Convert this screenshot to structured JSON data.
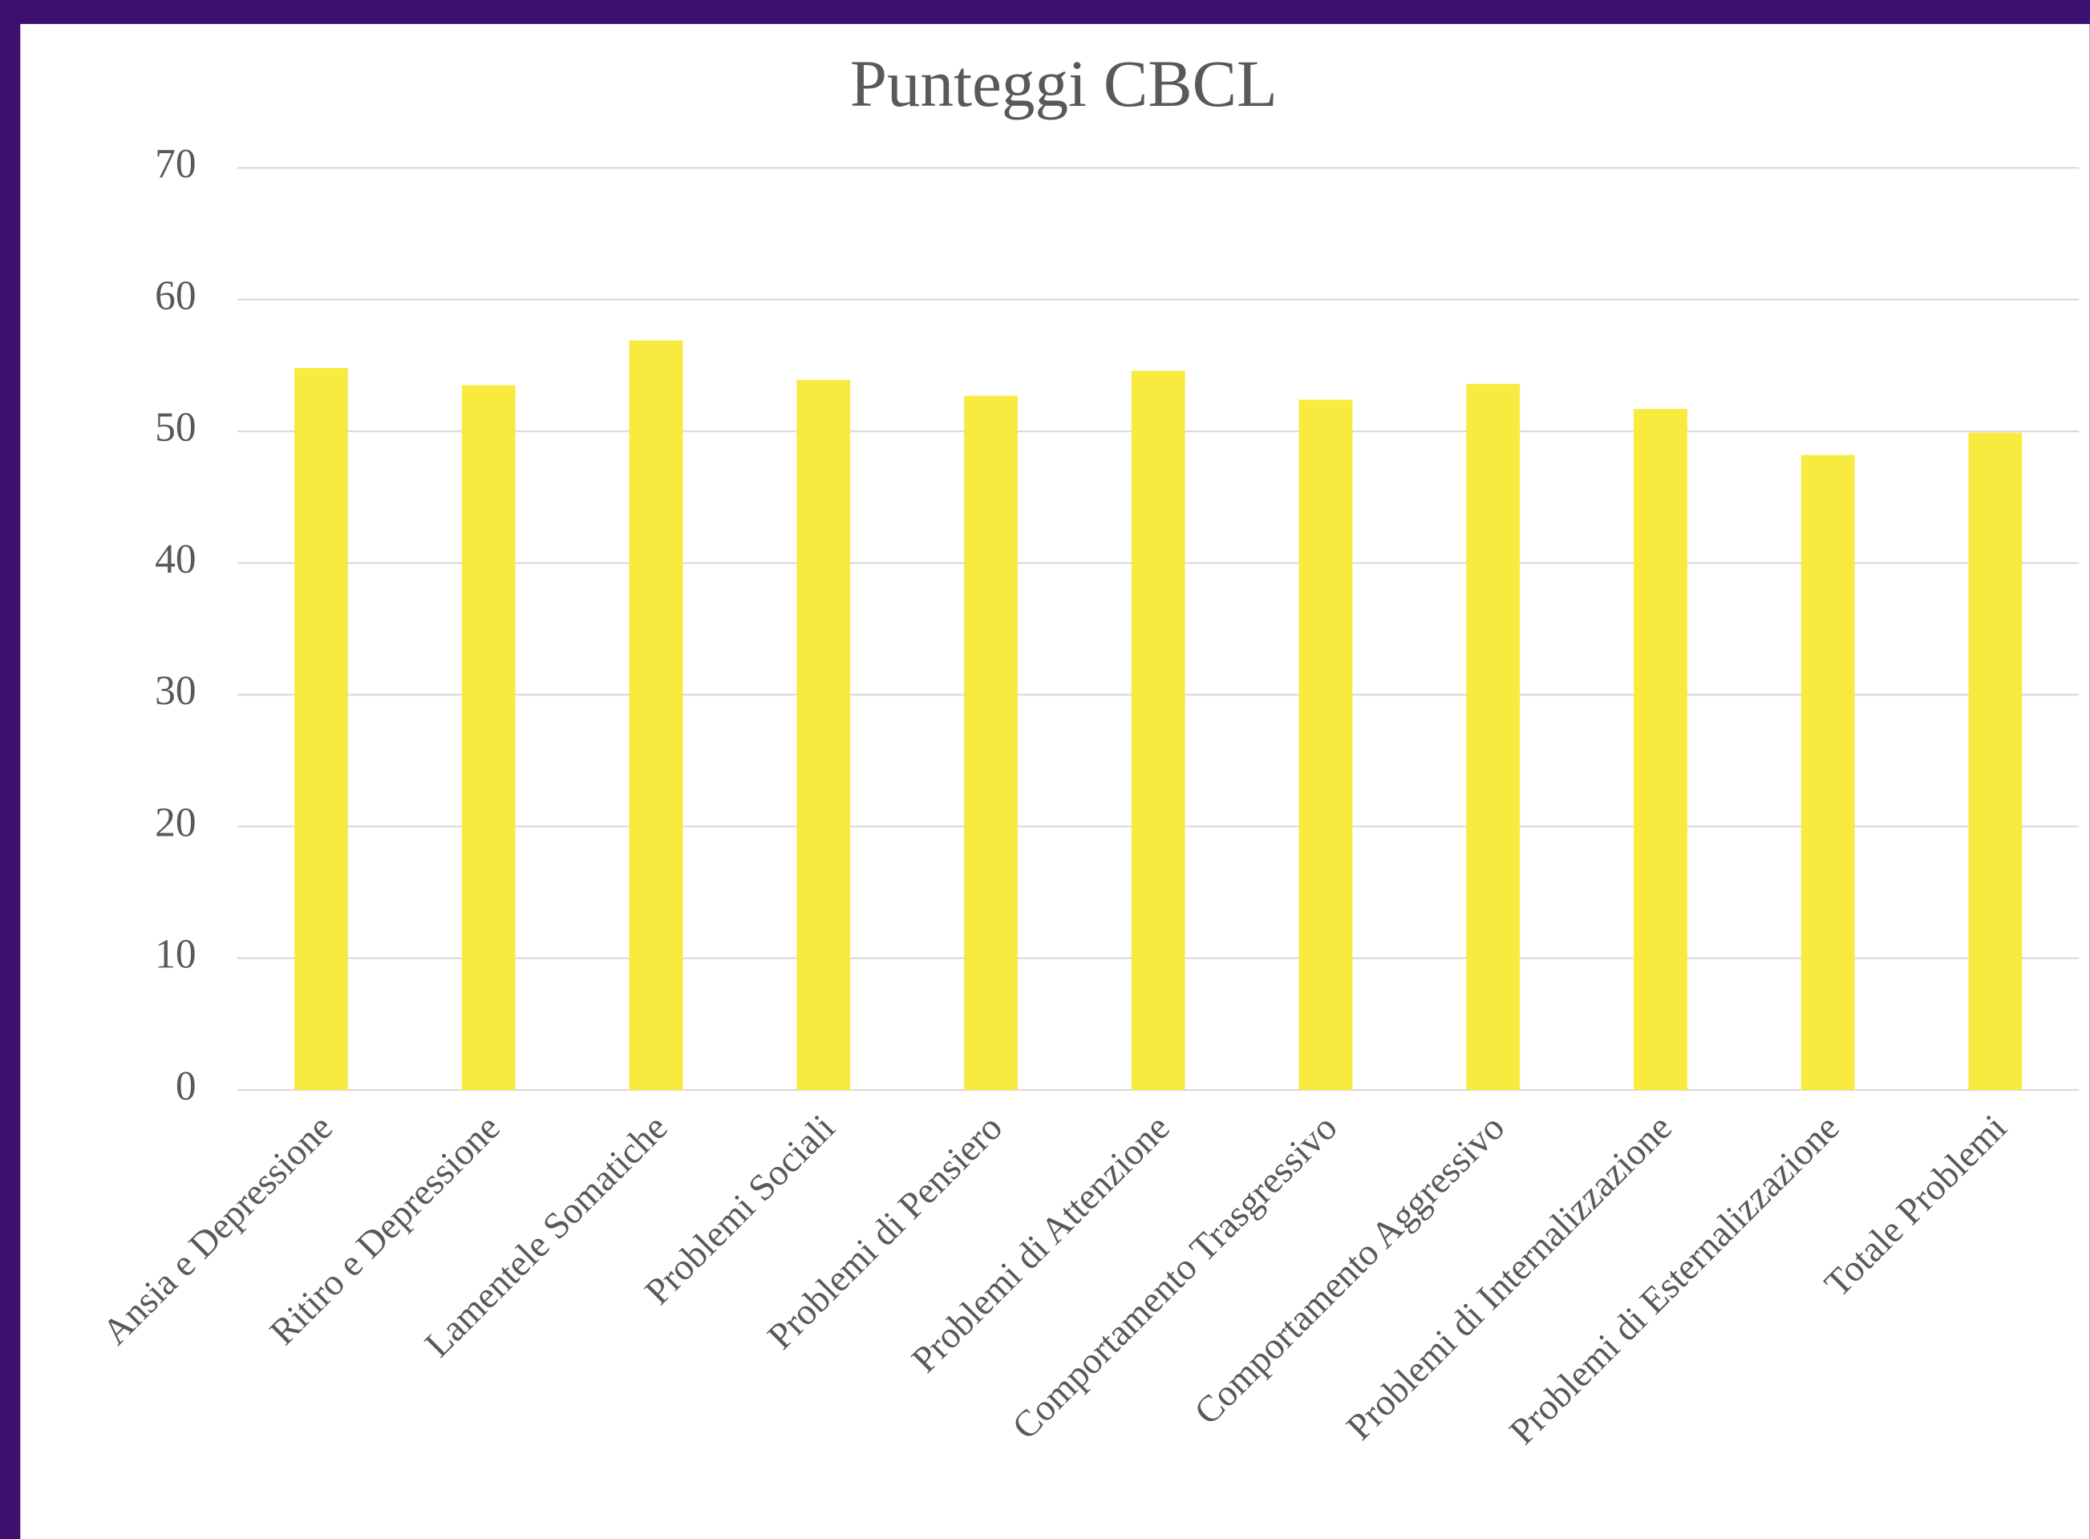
{
  "chart_data": {
    "type": "bar",
    "title": "Punteggi CBCL",
    "categories": [
      "Ansia e Depressione",
      "Ritiro e Depressione",
      "Lamentele Somatiche",
      "Problemi Sociali",
      "Problemi di Pensiero",
      "Problemi di Attenzione",
      "Comportamento Trasgressivo",
      "Comportamento Aggressivo",
      "Problemi di Internalizzazione",
      "Problemi di Esternalizzazione",
      "Totale Problemi"
    ],
    "values": [
      54.8,
      53.5,
      56.9,
      53.9,
      52.7,
      54.6,
      52.4,
      53.6,
      51.7,
      48.2,
      49.9
    ],
    "color": "#f9ea3f",
    "ylim": [
      0,
      70
    ],
    "yticks": [
      0,
      10,
      20,
      30,
      40,
      50,
      60,
      70
    ],
    "grid": true
  }
}
